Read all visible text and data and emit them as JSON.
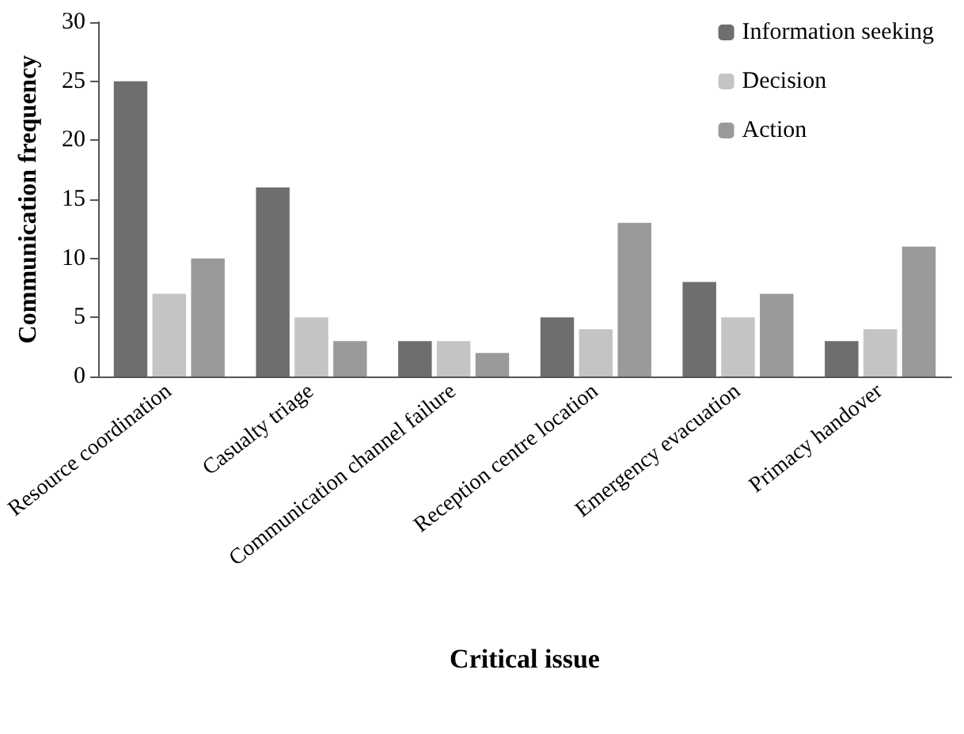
{
  "chart_data": {
    "type": "bar",
    "xlabel": "Critical issue",
    "ylabel": "Communication frequency",
    "categories": [
      "Resource coordination",
      "Casualty triage",
      "Communication channel failure",
      "Reception centre location",
      "Emergency evacuation",
      "Primacy handover"
    ],
    "series": [
      {
        "name": "Information seeking",
        "color": "#6e6e6e",
        "values": [
          25,
          16,
          3,
          5,
          8,
          3
        ]
      },
      {
        "name": "Decision",
        "color": "#c4c4c4",
        "values": [
          7,
          5,
          3,
          4,
          5,
          4
        ]
      },
      {
        "name": "Action",
        "color": "#9a9a9a",
        "values": [
          10,
          3,
          2,
          13,
          7,
          11
        ]
      }
    ],
    "ylim": [
      0,
      30
    ],
    "yticks": [
      0,
      5,
      10,
      15,
      20,
      25,
      30
    ],
    "grid": false,
    "legend": "top right"
  }
}
